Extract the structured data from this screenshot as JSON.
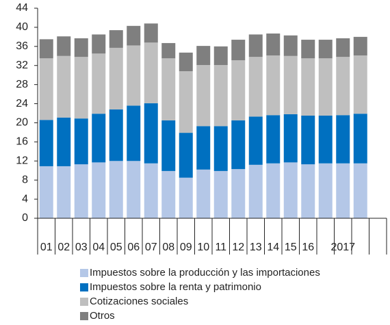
{
  "chart_data": {
    "type": "stacked-bar",
    "categories": [
      "01",
      "02",
      "03",
      "04",
      "05",
      "06",
      "07",
      "08",
      "09",
      "10",
      "11",
      "12",
      "13",
      "14",
      "15",
      "16",
      null,
      "2017",
      null
    ],
    "series": [
      {
        "name": "Impuestos sobre la producción y las importaciones",
        "color": "#b4c7e7",
        "values": [
          10.9,
          10.9,
          11.3,
          11.7,
          12.0,
          12.0,
          11.5,
          9.9,
          8.5,
          10.2,
          9.9,
          10.3,
          11.2,
          11.5,
          11.7,
          11.3,
          11.5,
          11.5,
          11.5
        ]
      },
      {
        "name": "Impuestos sobre la renta y patrimonio",
        "color": "#0070c0",
        "values": [
          9.7,
          10.2,
          9.6,
          10.2,
          10.8,
          11.6,
          12.6,
          10.6,
          9.4,
          9.1,
          9.4,
          10.2,
          10.1,
          10.1,
          10.1,
          10.2,
          10.0,
          10.1,
          10.4
        ]
      },
      {
        "name": "Cotizaciones sociales",
        "color": "#bfbfbf",
        "values": [
          12.9,
          12.9,
          12.9,
          12.6,
          12.9,
          12.6,
          12.7,
          13.0,
          12.9,
          12.8,
          12.8,
          12.6,
          12.5,
          12.5,
          12.2,
          12.0,
          12.0,
          12.2,
          12.2
        ]
      },
      {
        "name": "Otros",
        "color": "#7f7f7f",
        "values": [
          4.0,
          4.1,
          3.9,
          4.0,
          3.7,
          4.1,
          4.0,
          3.2,
          3.9,
          4.0,
          3.9,
          4.3,
          4.7,
          4.6,
          4.3,
          3.9,
          3.9,
          3.9,
          3.9
        ]
      }
    ],
    "ylim": [
      0,
      44
    ],
    "yticks": [
      0,
      4,
      8,
      12,
      16,
      20,
      24,
      28,
      32,
      36,
      40,
      44
    ]
  }
}
